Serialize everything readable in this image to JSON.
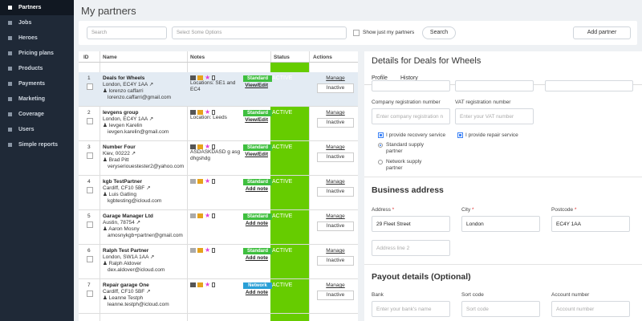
{
  "sidebar": {
    "items": [
      {
        "label": "Partners",
        "active": true
      },
      {
        "label": "Jobs"
      },
      {
        "label": "Heroes"
      },
      {
        "label": "Pricing plans"
      },
      {
        "label": "Products"
      },
      {
        "label": "Payments"
      },
      {
        "label": "Marketing"
      },
      {
        "label": "Coverage"
      },
      {
        "label": "Users"
      },
      {
        "label": "Simple reports"
      }
    ]
  },
  "header": {
    "title": "My partners"
  },
  "filters": {
    "search_placeholder": "Search",
    "options_placeholder": "Select Some Options",
    "show_mine_label": "Show just my partners",
    "search_button": "Search",
    "add_partner_button": "Add partner"
  },
  "table": {
    "columns": [
      "ID",
      "Name",
      "Notes",
      "Status",
      "Actions"
    ],
    "rows": [
      {
        "id": "1",
        "name": "Deals for Wheels",
        "location": "London, EC4Y 1AA",
        "contact": "lorenzo caffarri",
        "email": "lorenzo.caffarri@gmail.com",
        "notes": "Locations: SE1 and EC4",
        "plan": "Standard",
        "link": "View/Edit",
        "status": "ACTIVE",
        "manage": "Manage",
        "toggle": "Inactive"
      },
      {
        "id": "2",
        "name": "Ievgens group",
        "location": "London, EC4Y 1AA",
        "contact": "Ievgen Karelin",
        "email": "ievgen.karelin@gmail.com",
        "notes": "Location: Leeds",
        "plan": "Standard",
        "link": "View/Edit",
        "status": "ACTIVE",
        "manage": "Manage",
        "toggle": "Inactive"
      },
      {
        "id": "3",
        "name": "Number Four",
        "location": "Kiev, 00222",
        "contact": "Brad Pitt",
        "email": "veryseriouestester2@yahoo.com",
        "notes": "ASDASKDASD g asg dhgshdg",
        "plan": "Standard",
        "link": "View/Edit",
        "status": "ACTIVE",
        "manage": "Manage",
        "toggle": "Inactive"
      },
      {
        "id": "4",
        "name": "kgb TestPartner",
        "location": "Cardiff, CF10 5BF",
        "contact": "Luis Gatling",
        "email": "kgbtesting@icloud.com",
        "notes": "",
        "plan": "Standard",
        "link": "Add note",
        "status": "ACTIVE",
        "manage": "Manage",
        "toggle": "Inactive"
      },
      {
        "id": "5",
        "name": "Garage Manager Ltd",
        "location": "Austin, 78754",
        "contact": "Aaron Mosny",
        "email": "amosnykgb+partner@gmail.com",
        "notes": "",
        "plan": "Standard",
        "link": "Add note",
        "status": "ACTIVE",
        "manage": "Manage",
        "toggle": "Inactive"
      },
      {
        "id": "6",
        "name": "Ralph Test Partner",
        "location": "London, SW1A 1AA",
        "contact": "Ralph Aldover",
        "email": "dex.aldover@icloud.com",
        "notes": "",
        "plan": "Standard",
        "link": "Add note",
        "status": "ACTIVE",
        "manage": "Manage",
        "toggle": "Inactive"
      },
      {
        "id": "7",
        "name": "Repair garage One",
        "location": "Cardiff, CF10 5BF",
        "contact": "Leanne Testph",
        "email": "leanne.testph@icloud.com",
        "notes": "",
        "plan": "Network",
        "link": "Add note",
        "status": "ACTIVE",
        "manage": "Manage",
        "toggle": "Inactive"
      }
    ]
  },
  "details": {
    "title": "Details for Deals for Wheels",
    "tabs": [
      "Profile",
      "History"
    ],
    "company_reg_label": "Company registration number",
    "company_reg_placeholder": "Enter company registration n",
    "vat_label": "VAT registration number",
    "vat_placeholder": "Enter your VAT number",
    "recovery_label": "I provide recovery service",
    "repair_label": "I provide repair service",
    "standard_supply": "Standard supply partner",
    "network_supply": "Network supply partner",
    "business_address_heading": "Business address",
    "address_label": "Address",
    "address_value": "29 Fleet Street",
    "city_label": "City",
    "city_value": "London",
    "postcode_label": "Postcode",
    "postcode_value": "EC4Y 1AA",
    "address2_placeholder": "Address line 2",
    "payout_heading": "Payout details (Optional)",
    "bank_label": "Bank",
    "bank_placeholder": "Enter your bank's name",
    "sort_label": "Sort code",
    "sort_placeholder": "Sort code",
    "account_label": "Account number",
    "account_placeholder": "Account number",
    "required_mark": "*"
  }
}
